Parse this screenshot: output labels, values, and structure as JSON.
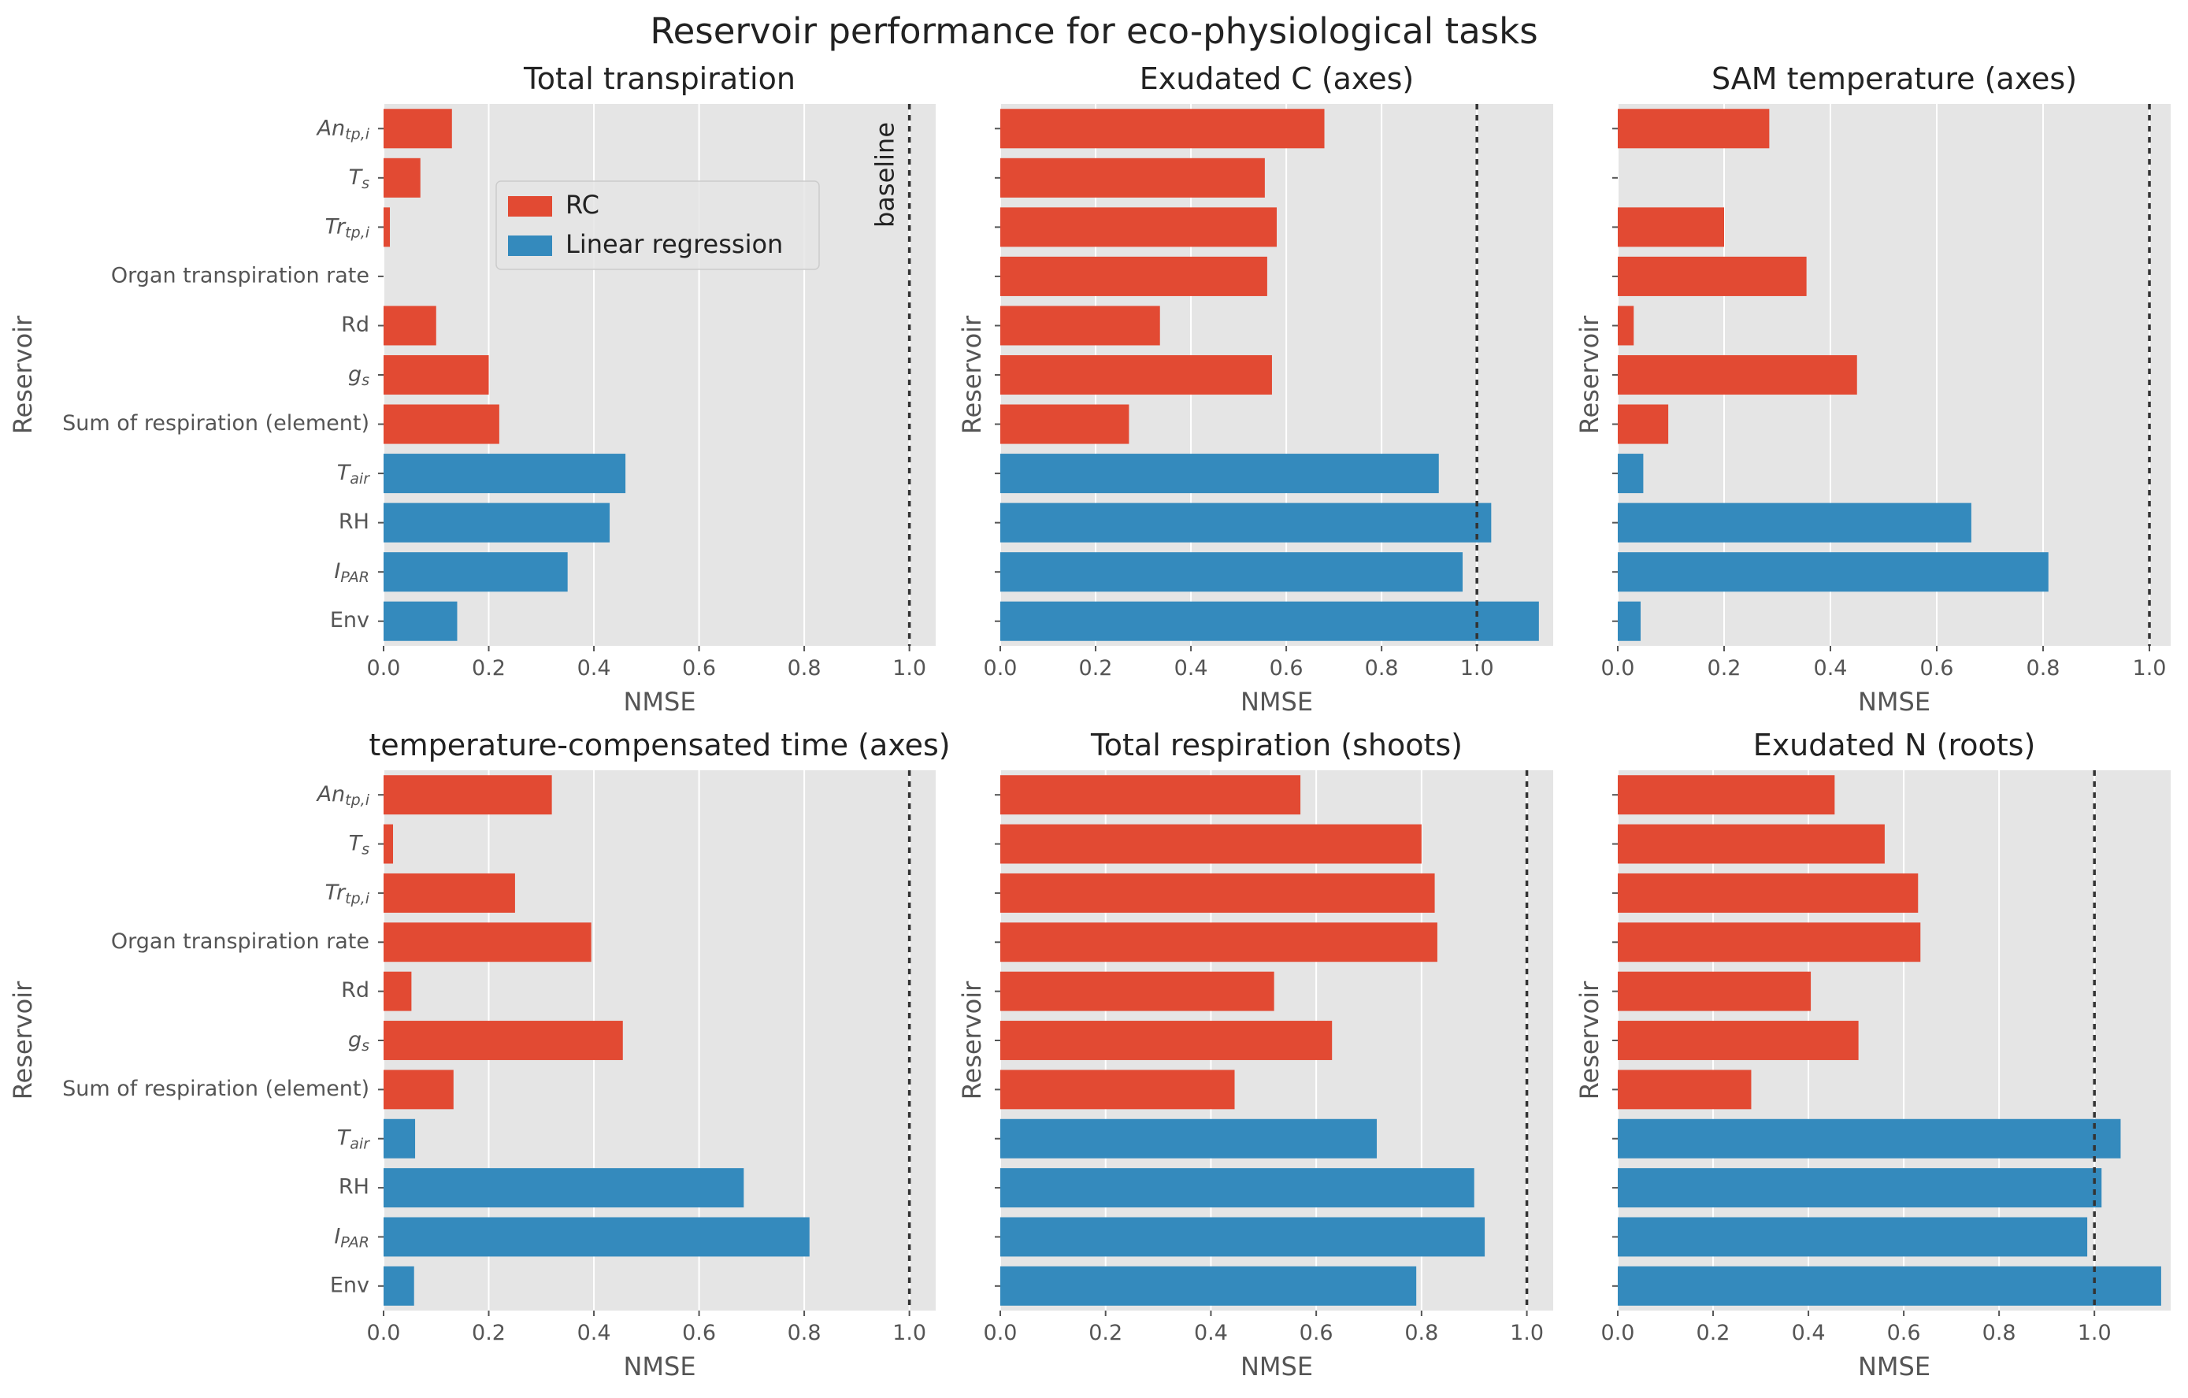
{
  "figure_title": "Reservoir performance for eco-physiological tasks",
  "legend": {
    "placement": "upper-left of first panel",
    "items": [
      {
        "label": "RC",
        "color": "#E24A33"
      },
      {
        "label": "Linear regression",
        "color": "#348ABD"
      }
    ]
  },
  "baseline_label": "baseline",
  "colors": {
    "rc": "#E24A33",
    "linear": "#348ABD",
    "plot_bg": "#E5E5E5",
    "grid": "#FFFFFF",
    "axis_text": "#555555"
  },
  "chart_data": [
    {
      "type": "bar",
      "orientation": "horizontal",
      "title": "Total transpiration",
      "xlabel": "NMSE",
      "ylabel": "Reservoir",
      "xlim": [
        0,
        1.05
      ],
      "xticks": [
        "0.0",
        "0.2",
        "0.4",
        "0.6",
        "0.8",
        "1.0"
      ],
      "baseline": 1.0,
      "show_category_labels": true,
      "categories": [
        "An_tp,i",
        "T_s",
        "Tr_tp,i",
        "Organ transpiration rate",
        "Rd",
        "g_s",
        "Sum of respiration (element)",
        "T_air",
        "RH",
        "I_PAR",
        "Env"
      ],
      "values": [
        0.13,
        0.07,
        0.012,
        null,
        0.1,
        0.2,
        0.22,
        0.46,
        0.43,
        0.35,
        0.14
      ],
      "groups": [
        "RC",
        "RC",
        "RC",
        "RC",
        "RC",
        "RC",
        "RC",
        "Linear regression",
        "Linear regression",
        "Linear regression",
        "Linear regression"
      ],
      "grid": true
    },
    {
      "type": "bar",
      "orientation": "horizontal",
      "title": "Exudated C (axes)",
      "xlabel": "NMSE",
      "ylabel": "Reservoir",
      "xlim": [
        0,
        1.16
      ],
      "xticks": [
        "0.0",
        "0.2",
        "0.4",
        "0.6",
        "0.8",
        "1.0"
      ],
      "baseline": 1.0,
      "show_category_labels": false,
      "values": [
        0.68,
        0.555,
        0.58,
        0.56,
        0.335,
        0.57,
        0.27,
        0.92,
        1.03,
        0.97,
        1.13
      ],
      "groups": [
        "RC",
        "RC",
        "RC",
        "RC",
        "RC",
        "RC",
        "RC",
        "Linear regression",
        "Linear regression",
        "Linear regression",
        "Linear regression"
      ],
      "grid": true
    },
    {
      "type": "bar",
      "orientation": "horizontal",
      "title": "SAM temperature (axes)",
      "xlabel": "NMSE",
      "ylabel": "Reservoir",
      "xlim": [
        0,
        1.04
      ],
      "xticks": [
        "0.0",
        "0.2",
        "0.4",
        "0.6",
        "0.8",
        "1.0"
      ],
      "baseline": 1.0,
      "show_category_labels": false,
      "values": [
        0.285,
        null,
        0.2,
        0.355,
        0.03,
        0.45,
        0.095,
        0.048,
        0.665,
        0.81,
        0.043
      ],
      "groups": [
        "RC",
        "RC",
        "RC",
        "RC",
        "RC",
        "RC",
        "RC",
        "Linear regression",
        "Linear regression",
        "Linear regression",
        "Linear regression"
      ],
      "grid": true
    },
    {
      "type": "bar",
      "orientation": "horizontal",
      "title": "temperature-compensated time (axes)",
      "xlabel": "NMSE",
      "ylabel": "Reservoir",
      "xlim": [
        0,
        1.05
      ],
      "xticks": [
        "0.0",
        "0.2",
        "0.4",
        "0.6",
        "0.8",
        "1.0"
      ],
      "baseline": 1.0,
      "show_category_labels": true,
      "categories": [
        "An_tp,i",
        "T_s",
        "Tr_tp,i",
        "Organ transpiration rate",
        "Rd",
        "g_s",
        "Sum of respiration (element)",
        "T_air",
        "RH",
        "I_PAR",
        "Env"
      ],
      "values": [
        0.32,
        0.018,
        0.25,
        0.395,
        0.053,
        0.455,
        0.133,
        0.06,
        0.685,
        0.81,
        0.058
      ],
      "groups": [
        "RC",
        "RC",
        "RC",
        "RC",
        "RC",
        "RC",
        "RC",
        "Linear regression",
        "Linear regression",
        "Linear regression",
        "Linear regression"
      ],
      "grid": true
    },
    {
      "type": "bar",
      "orientation": "horizontal",
      "title": "Total respiration (shoots)",
      "xlabel": "NMSE",
      "ylabel": "Reservoir",
      "xlim": [
        0,
        1.05
      ],
      "xticks": [
        "0.0",
        "0.2",
        "0.4",
        "0.6",
        "0.8",
        "1.0"
      ],
      "baseline": 1.0,
      "show_category_labels": false,
      "values": [
        0.57,
        0.8,
        0.825,
        0.83,
        0.52,
        0.63,
        0.445,
        0.715,
        0.9,
        0.92,
        0.79
      ],
      "groups": [
        "RC",
        "RC",
        "RC",
        "RC",
        "RC",
        "RC",
        "RC",
        "Linear regression",
        "Linear regression",
        "Linear regression",
        "Linear regression"
      ],
      "grid": true
    },
    {
      "type": "bar",
      "orientation": "horizontal",
      "title": "Exudated N (roots)",
      "xlabel": "NMSE",
      "ylabel": "Reservoir",
      "xlim": [
        0,
        1.16
      ],
      "xticks": [
        "0.0",
        "0.2",
        "0.4",
        "0.6",
        "0.8",
        "1.0"
      ],
      "baseline": 1.0,
      "show_category_labels": false,
      "values": [
        0.455,
        0.56,
        0.63,
        0.635,
        0.405,
        0.505,
        0.28,
        1.055,
        1.015,
        0.985,
        1.14
      ],
      "groups": [
        "RC",
        "RC",
        "RC",
        "RC",
        "RC",
        "RC",
        "RC",
        "Linear regression",
        "Linear regression",
        "Linear regression",
        "Linear regression"
      ],
      "grid": true
    }
  ]
}
